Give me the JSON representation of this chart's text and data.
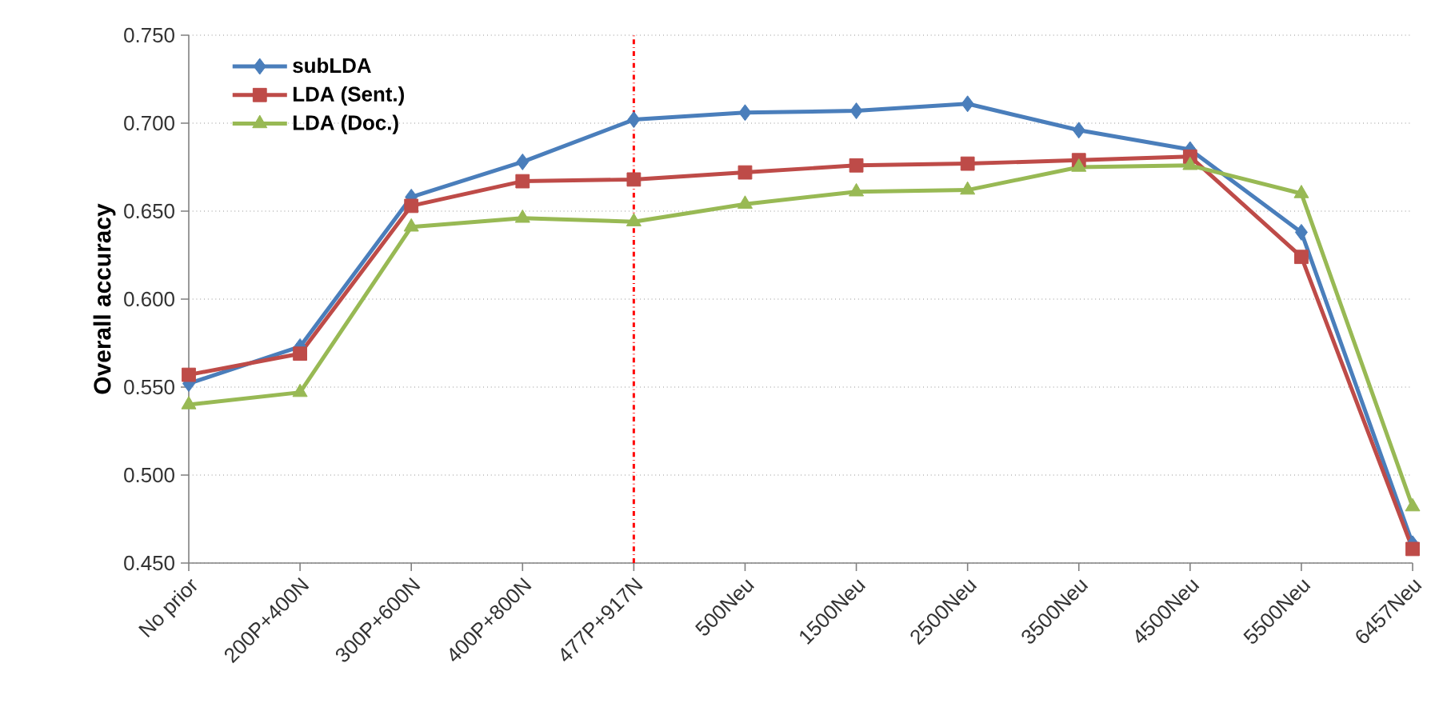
{
  "chart_data": {
    "type": "line",
    "ylabel": "Overall accuracy",
    "categories": [
      "No prior",
      "200P+400N",
      "300P+600N",
      "400P+800N",
      "477P+917N",
      "500Neu",
      "1500Neu",
      "2500Neu",
      "3500Neu",
      "4500Neu",
      "5500Neu",
      "6457Neu"
    ],
    "series": [
      {
        "name": "subLDA",
        "color": "#4a7ebb",
        "marker": "diamond",
        "values": [
          0.552,
          0.573,
          0.658,
          0.678,
          0.702,
          0.706,
          0.707,
          0.711,
          0.696,
          0.685,
          0.638,
          0.461
        ]
      },
      {
        "name": "LDA (Sent.)",
        "color": "#be4b48",
        "marker": "square",
        "values": [
          0.557,
          0.569,
          0.653,
          0.667,
          0.668,
          0.672,
          0.676,
          0.677,
          0.679,
          0.681,
          0.624,
          0.458
        ]
      },
      {
        "name": "LDA (Doc.)",
        "color": "#98b954",
        "marker": "triangle",
        "values": [
          0.54,
          0.547,
          0.641,
          0.646,
          0.644,
          0.654,
          0.661,
          0.662,
          0.675,
          0.676,
          0.66,
          0.482
        ]
      }
    ],
    "ylim": [
      0.45,
      0.75
    ],
    "yticks": [
      {
        "value": 0.45,
        "label": "0.450"
      },
      {
        "value": 0.5,
        "label": "0.500"
      },
      {
        "value": 0.55,
        "label": "0.550"
      },
      {
        "value": 0.6,
        "label": "0.600"
      },
      {
        "value": 0.65,
        "label": "0.650"
      },
      {
        "value": 0.7,
        "label": "0.700"
      },
      {
        "value": 0.75,
        "label": "0.750"
      }
    ],
    "grid": "y",
    "legend": "top left",
    "line_style": "solid",
    "ref_lines": [
      {
        "axis": "x",
        "value": "477P+917N",
        "color": "#ff0000",
        "line_style": "dashdotted"
      }
    ]
  }
}
